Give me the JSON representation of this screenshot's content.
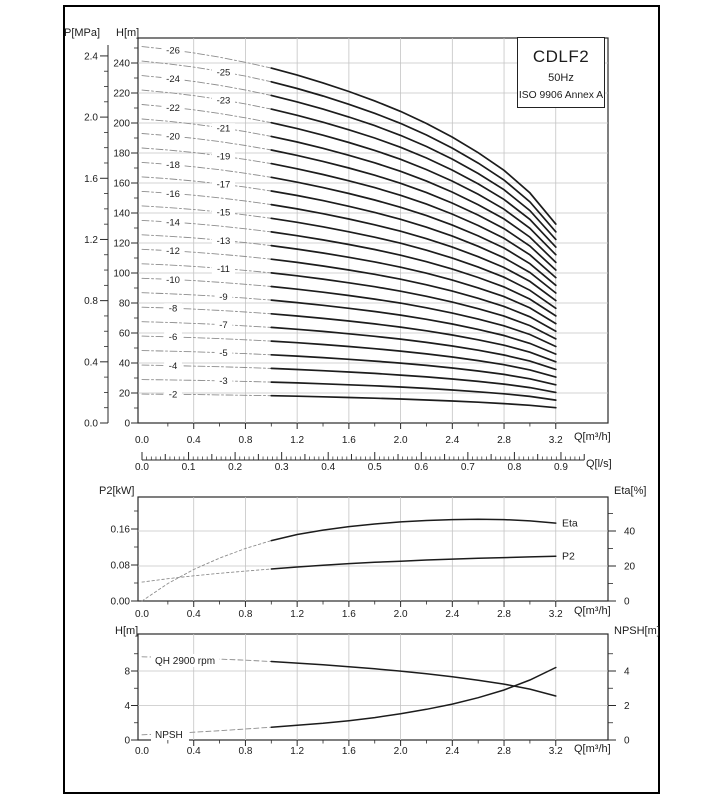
{
  "palette": {
    "ink": "#1c1c1c",
    "axis": "#2a2a2a",
    "grid": "#c4c4c4",
    "dash": "#8d8d8d",
    "background": "#ffffff"
  },
  "title_block": {
    "model": "CDLF2",
    "frequency": "50Hz",
    "standard": "ISO 9906 Annex A"
  },
  "chart_data": [
    {
      "type": "line",
      "name": "multistage-head-curves",
      "xlabel": "Q[m³/h]",
      "x2label": "Q[l/s]",
      "y_left_label": "P[MPa]",
      "y_inner_label": "H[m]",
      "xlim": [
        0,
        3.6
      ],
      "x_ticks": [
        "0.0",
        "0.4",
        "0.8",
        "1.2",
        "1.6",
        "2.0",
        "2.4",
        "2.8",
        "3.2"
      ],
      "x2_ticks": [
        "0.0",
        "0.1",
        "0.2",
        "0.3",
        "0.4",
        "0.5",
        "0.6",
        "0.7",
        "0.8",
        "0.9"
      ],
      "h_ticks": [
        "0",
        "20",
        "40",
        "60",
        "80",
        "100",
        "120",
        "140",
        "160",
        "180",
        "200",
        "220",
        "240"
      ],
      "p_ticks": [
        "0.0",
        "0.4",
        "0.8",
        "1.2",
        "1.6",
        "2.0",
        "2.4"
      ],
      "x": [
        0,
        0.2,
        0.4,
        0.6,
        0.8,
        1.0,
        1.2,
        1.4,
        1.6,
        1.8,
        2.0,
        2.2,
        2.4,
        2.6,
        2.8,
        3.0,
        3.2
      ],
      "base_head_per_stage": [
        9.65,
        9.58,
        9.49,
        9.38,
        9.25,
        9.1,
        8.92,
        8.72,
        8.5,
        8.26,
        7.99,
        7.68,
        7.33,
        6.93,
        6.48,
        5.9,
        5.1
      ],
      "stages": [
        2,
        3,
        4,
        5,
        6,
        7,
        8,
        9,
        10,
        11,
        12,
        13,
        14,
        15,
        16,
        17,
        18,
        19,
        20,
        21,
        22,
        23,
        24,
        25,
        26
      ],
      "stage_label_prefix": "-",
      "solid_from_q": 1.0,
      "grid": "on"
    },
    {
      "type": "line",
      "name": "power-and-efficiency",
      "xlabel": "Q[m³/h]",
      "y_left_label": "P2[kW]",
      "y_right_label": "Eta[%]",
      "x_ticks": [
        "0.0",
        "0.4",
        "0.8",
        "1.2",
        "1.6",
        "2.0",
        "2.4",
        "2.8",
        "3.2"
      ],
      "p2_ticks": [
        "0.00",
        "0.08",
        "0.16"
      ],
      "eta_ticks": [
        "0",
        "20",
        "40"
      ],
      "x": [
        0,
        0.2,
        0.4,
        0.6,
        0.8,
        1.0,
        1.2,
        1.4,
        1.6,
        1.8,
        2.0,
        2.2,
        2.4,
        2.6,
        2.8,
        3.0,
        3.2
      ],
      "series": [
        {
          "name": "Eta",
          "axis": "eta",
          "values": [
            0,
            10,
            18,
            24.5,
            30,
            34.5,
            38,
            40.5,
            42.5,
            44,
            45.2,
            46,
            46.5,
            46.7,
            46.5,
            45.8,
            44.5
          ]
        },
        {
          "name": "P2",
          "axis": "p2",
          "values": [
            0.042,
            0.0495,
            0.056,
            0.0615,
            0.0665,
            0.071,
            0.0755,
            0.0795,
            0.083,
            0.086,
            0.0885,
            0.091,
            0.093,
            0.095,
            0.0965,
            0.098,
            0.0995
          ]
        }
      ],
      "solid_from_q": 1.0,
      "grid": "on"
    },
    {
      "type": "line",
      "name": "single-stage-qh-and-npsh",
      "xlabel": "Q[m³/h]",
      "y_left_label": "H[m]",
      "y_right_label": "NPSH[m]",
      "x_ticks": [
        "0.0",
        "0.4",
        "0.8",
        "1.2",
        "1.6",
        "2.0",
        "2.4",
        "2.8",
        "3.2"
      ],
      "h_ticks": [
        "0",
        "4",
        "8"
      ],
      "npsh_ticks": [
        "0",
        "2",
        "4"
      ],
      "x": [
        0,
        0.2,
        0.4,
        0.6,
        0.8,
        1.0,
        1.2,
        1.4,
        1.6,
        1.8,
        2.0,
        2.2,
        2.4,
        2.6,
        2.8,
        3.0,
        3.2
      ],
      "series": [
        {
          "name": "QH 2900 rpm",
          "axis": "h",
          "values": [
            9.65,
            9.58,
            9.49,
            9.38,
            9.25,
            9.1,
            8.92,
            8.72,
            8.5,
            8.26,
            7.99,
            7.68,
            7.33,
            6.93,
            6.48,
            5.9,
            5.1
          ]
        },
        {
          "name": "NPSH",
          "axis": "npsh",
          "values": [
            0.3,
            0.37,
            0.45,
            0.54,
            0.64,
            0.74,
            0.85,
            0.97,
            1.12,
            1.3,
            1.52,
            1.78,
            2.08,
            2.45,
            2.9,
            3.48,
            4.2
          ]
        }
      ],
      "solid_from_q": 1.0,
      "grid": "on"
    }
  ]
}
